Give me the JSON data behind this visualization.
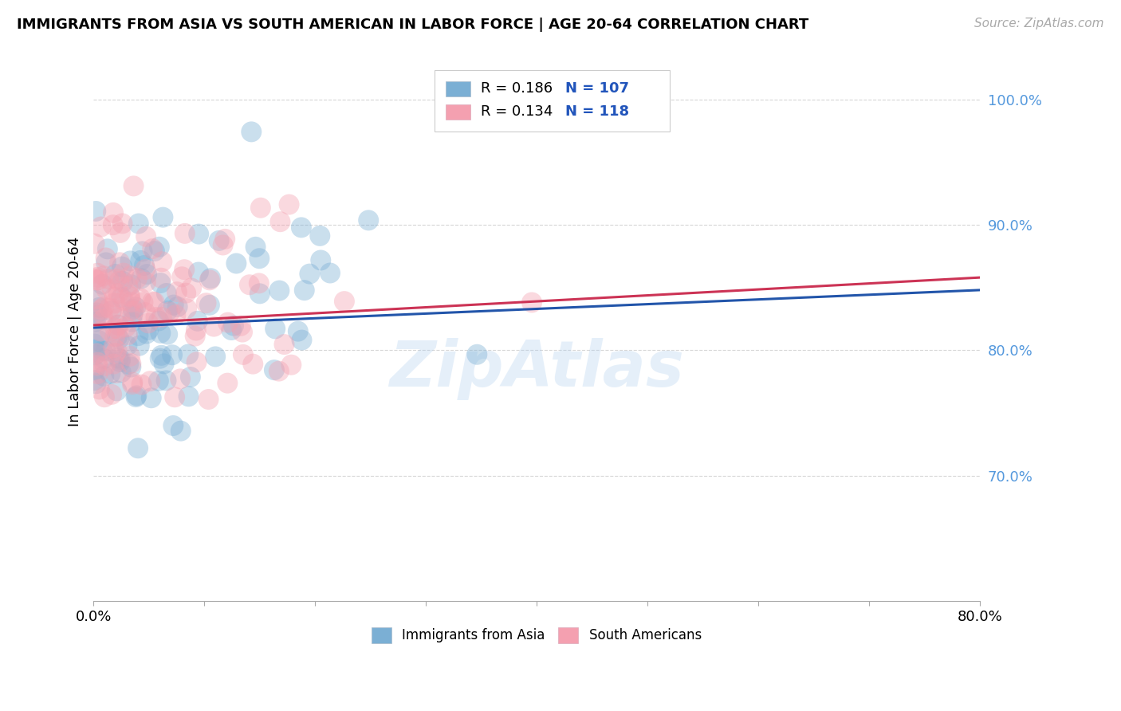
{
  "title": "IMMIGRANTS FROM ASIA VS SOUTH AMERICAN IN LABOR FORCE | AGE 20-64 CORRELATION CHART",
  "source": "Source: ZipAtlas.com",
  "ylabel": "In Labor Force | Age 20-64",
  "xlim": [
    0.0,
    0.8
  ],
  "ylim": [
    0.6,
    1.03
  ],
  "yticks": [
    0.7,
    0.8,
    0.9,
    1.0
  ],
  "ytick_labels": [
    "70.0%",
    "80.0%",
    "90.0%",
    "100.0%"
  ],
  "xticks": [
    0.0,
    0.1,
    0.2,
    0.3,
    0.4,
    0.5,
    0.6,
    0.7,
    0.8
  ],
  "xtick_labels": [
    "0.0%",
    "",
    "",
    "",
    "",
    "",
    "",
    "",
    "80.0%"
  ],
  "asia_R": 0.186,
  "asia_N": 107,
  "south_R": 0.134,
  "south_N": 118,
  "asia_color": "#7BAFD4",
  "south_color": "#F4A0B0",
  "trend_asia_color": "#2255AA",
  "trend_south_color": "#CC3355",
  "watermark": "ZipAtlas",
  "legend_asia_label": "Immigrants from Asia",
  "legend_south_label": "South Americans"
}
